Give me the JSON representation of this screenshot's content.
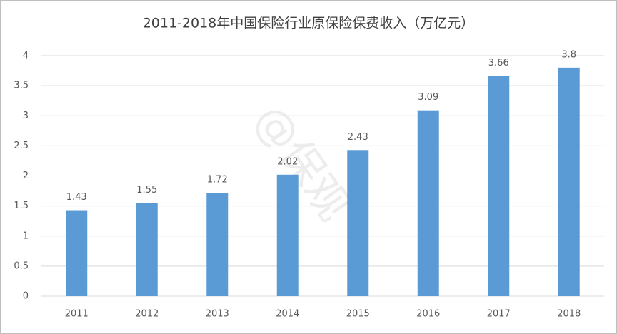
{
  "chart_data": {
    "type": "bar",
    "title": "2011-2018年中国保险行业原保险保费收入（万亿元）",
    "categories": [
      "2011",
      "2012",
      "2013",
      "2014",
      "2015",
      "2016",
      "2017",
      "2018"
    ],
    "values": [
      1.43,
      1.55,
      1.72,
      2.02,
      2.43,
      3.09,
      3.66,
      3.8
    ],
    "color": "#5b9bd5",
    "ylim": [
      0,
      4
    ],
    "yticks": [
      0,
      0.5,
      1,
      1.5,
      2,
      2.5,
      3,
      3.5,
      4
    ],
    "grid": true,
    "watermark": "@保观"
  }
}
